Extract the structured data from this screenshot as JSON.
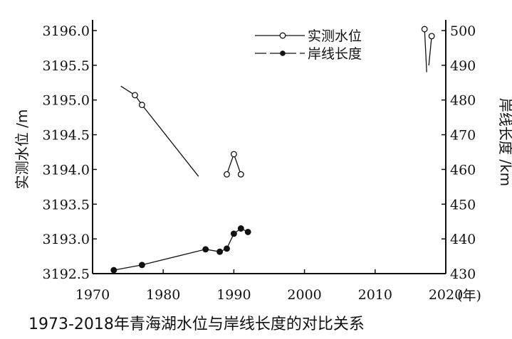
{
  "chart_data": {
    "type": "line",
    "title": "1973-2018年青海湖水位与岸线长度的对比关系",
    "x_axis": {
      "label": "(年)",
      "min": 1970,
      "max": 2020,
      "ticks": [
        1970,
        1980,
        1990,
        2000,
        2010,
        2020
      ]
    },
    "y_left": {
      "label": "实测水位 /m",
      "min": 3192.5,
      "max": 3196.0,
      "ticks": [
        "3192.5",
        "3193.0",
        "3193.5",
        "3194.0",
        "3194.5",
        "3195.0",
        "3195.5",
        "3196.0"
      ]
    },
    "y_right": {
      "label": "岸线长度 /km",
      "min": 430,
      "max": 500,
      "ticks": [
        "430",
        "440",
        "450",
        "460",
        "470",
        "480",
        "490",
        "500"
      ]
    },
    "legend": {
      "position": "top-right"
    },
    "series": [
      {
        "name": "实测水位",
        "axis": "left",
        "marker": "open-circle",
        "segments": [
          [
            [
              1974,
              3195.2
            ],
            [
              1976,
              3195.07
            ],
            [
              1977,
              3194.93
            ],
            [
              1985,
              3193.9
            ]
          ],
          [
            [
              1989,
              3193.93
            ],
            [
              1990,
              3194.22
            ],
            [
              1991,
              3193.93
            ]
          ],
          [
            [
              2017,
              3196.02
            ],
            [
              2017.3,
              3195.4
            ]
          ],
          [
            [
              2018,
              3195.92
            ],
            [
              2017.6,
              3195.5
            ]
          ]
        ],
        "points": [
          [
            1976,
            3195.07
          ],
          [
            1977,
            3194.93
          ],
          [
            1989,
            3193.93
          ],
          [
            1990,
            3194.22
          ],
          [
            1991,
            3193.93
          ],
          [
            2017,
            3196.02
          ],
          [
            2018,
            3195.92
          ]
        ]
      },
      {
        "name": "岸线长度",
        "axis": "right",
        "marker": "filled-circle",
        "segments": [
          [
            [
              1973,
              431
            ],
            [
              1977,
              432.5
            ],
            [
              1986,
              437
            ],
            [
              1988,
              436.3
            ],
            [
              1989,
              437.2
            ],
            [
              1990,
              441.5
            ],
            [
              1991,
              443
            ],
            [
              1992,
              442
            ]
          ]
        ],
        "points": [
          [
            1973,
            431
          ],
          [
            1977,
            432.5
          ],
          [
            1986,
            437
          ],
          [
            1988,
            436.3
          ],
          [
            1989,
            437.2
          ],
          [
            1990,
            441.5
          ],
          [
            1991,
            443
          ],
          [
            1992,
            442
          ]
        ]
      }
    ]
  }
}
